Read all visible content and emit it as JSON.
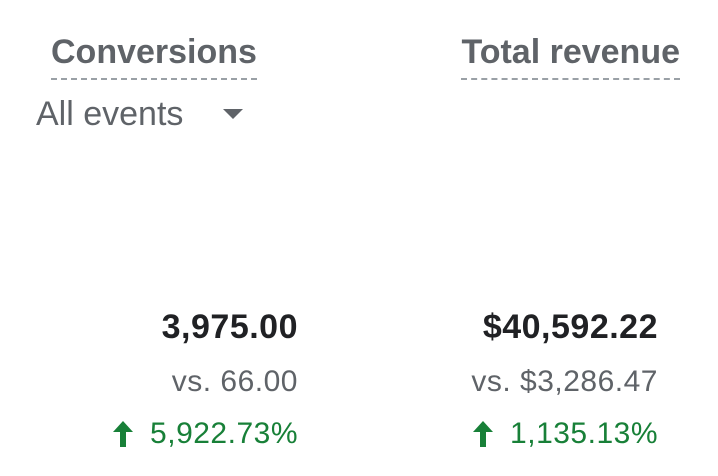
{
  "conversions": {
    "title": "Conversions",
    "event_filter": "All events",
    "value": "3,975.00",
    "compare": "vs. 66.00",
    "change": "5,922.73%",
    "change_direction": "up",
    "change_color": "#188038"
  },
  "revenue": {
    "title": "Total revenue",
    "value": "$40,592.22",
    "compare": "vs. $3,286.47",
    "change": "1,135.13%",
    "change_direction": "up",
    "change_color": "#188038"
  },
  "icons": {
    "dropdown": "caret-down-icon",
    "change": "arrow-up-icon"
  }
}
